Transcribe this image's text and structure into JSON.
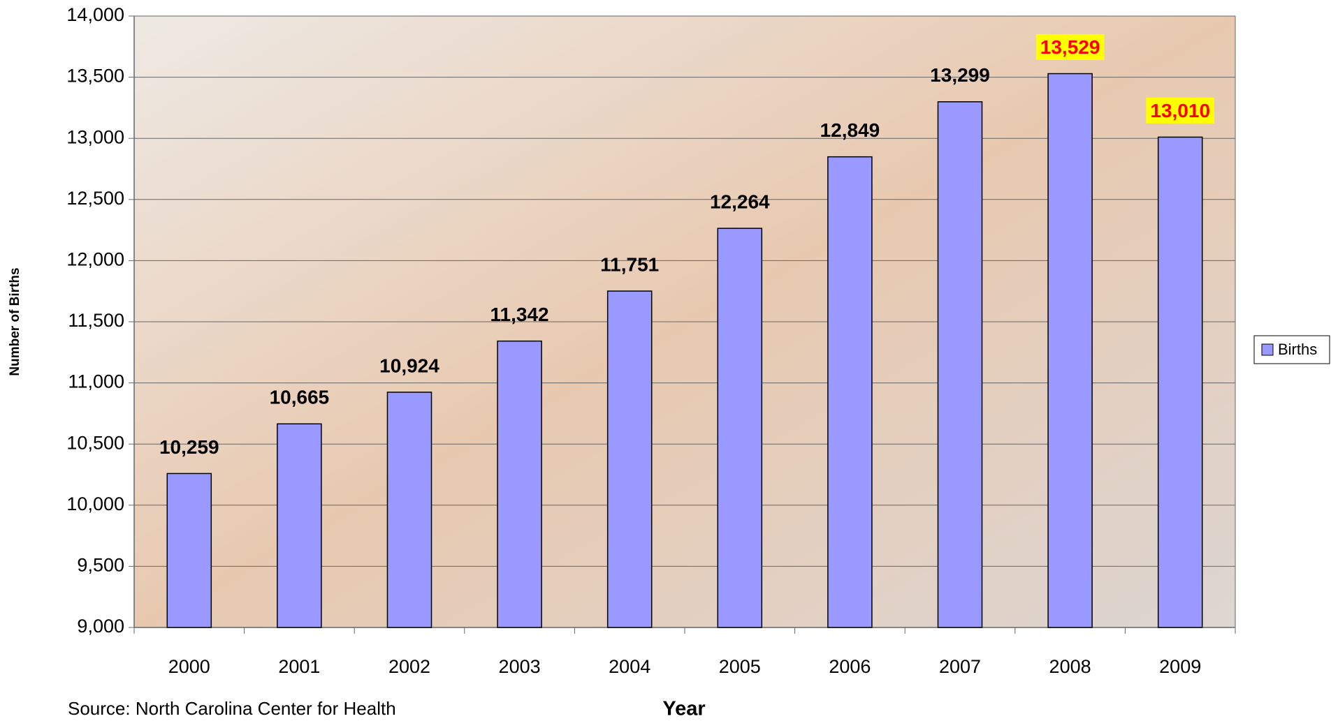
{
  "chart_data": {
    "type": "bar",
    "categories": [
      "2000",
      "2001",
      "2002",
      "2003",
      "2004",
      "2005",
      "2006",
      "2007",
      "2008",
      "2009"
    ],
    "series": [
      {
        "name": "Births",
        "color": "#9999ff",
        "values": [
          10259,
          10665,
          10924,
          11342,
          11751,
          12264,
          12849,
          13299,
          13529,
          13010
        ],
        "value_labels": [
          "10,259",
          "10,665",
          "10,924",
          "11,342",
          "11,751",
          "12,264",
          "12,849",
          "13,299",
          "13,529",
          "13,010"
        ],
        "value_label_colors": [
          "#000000",
          "#000000",
          "#000000",
          "#000000",
          "#000000",
          "#000000",
          "#000000",
          "#000000",
          "#ff0000",
          "#ff0000"
        ],
        "value_label_backgrounds": [
          null,
          null,
          null,
          null,
          null,
          null,
          null,
          null,
          "#ffff00",
          "#ffff00"
        ]
      }
    ],
    "ylim": [
      9000,
      14000
    ],
    "yticks": [
      {
        "value": 9000,
        "label": "9,000"
      },
      {
        "value": 9500,
        "label": "9,500"
      },
      {
        "value": 10000,
        "label": "10,000"
      },
      {
        "value": 10500,
        "label": "10,500"
      },
      {
        "value": 11000,
        "label": "11,000"
      },
      {
        "value": 11500,
        "label": "11,500"
      },
      {
        "value": 12000,
        "label": "12,000"
      },
      {
        "value": 12500,
        "label": "12,500"
      },
      {
        "value": 13000,
        "label": "13,000"
      },
      {
        "value": 13500,
        "label": "13,500"
      },
      {
        "value": 14000,
        "label": "14,000"
      }
    ],
    "grid": true,
    "y_label": "Number of Births",
    "x_label": "Year",
    "source": "Source:  North Carolina Center for Health",
    "legend": "right"
  }
}
